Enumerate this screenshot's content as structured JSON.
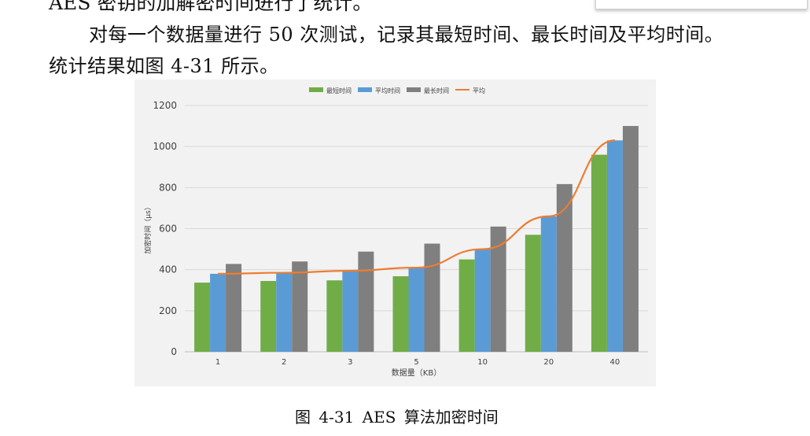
{
  "document": {
    "cut_top_line": "AES 密钥的加解密时间进行了统计。",
    "paragraph_line1": "对每一个数据量进行 50 次测试，记录其最短时间、最长时间及平均时间。",
    "paragraph_line2": "统计结果如图 4-31 所示。",
    "figure_caption": "图 4-31    AES 算法加密时间"
  },
  "chart_data": {
    "type": "bar",
    "categories": [
      "1",
      "2",
      "3",
      "5",
      "10",
      "20",
      "40"
    ],
    "series": [
      {
        "name": "最短时间",
        "kind": "bar",
        "color": "#70ad47",
        "values": [
          337,
          345,
          348,
          368,
          450,
          570,
          960
        ]
      },
      {
        "name": "平均时间",
        "kind": "bar",
        "color": "#5b9bd5",
        "values": [
          380,
          385,
          395,
          410,
          500,
          660,
          1030
        ]
      },
      {
        "name": "最长时间",
        "kind": "bar",
        "color": "#7f7f7f",
        "values": [
          428,
          440,
          488,
          527,
          610,
          817,
          1100
        ]
      },
      {
        "name": "平均",
        "kind": "line",
        "color": "#ed7d31",
        "values": [
          380,
          385,
          395,
          410,
          500,
          660,
          1030
        ]
      }
    ],
    "xlabel": "数据量（KB）",
    "ylabel": "加密时间（μs）",
    "ylim": [
      0,
      1200
    ],
    "yticks": [
      0,
      200,
      400,
      600,
      800,
      1000,
      1200
    ],
    "grid": true,
    "legend_position": "top"
  }
}
